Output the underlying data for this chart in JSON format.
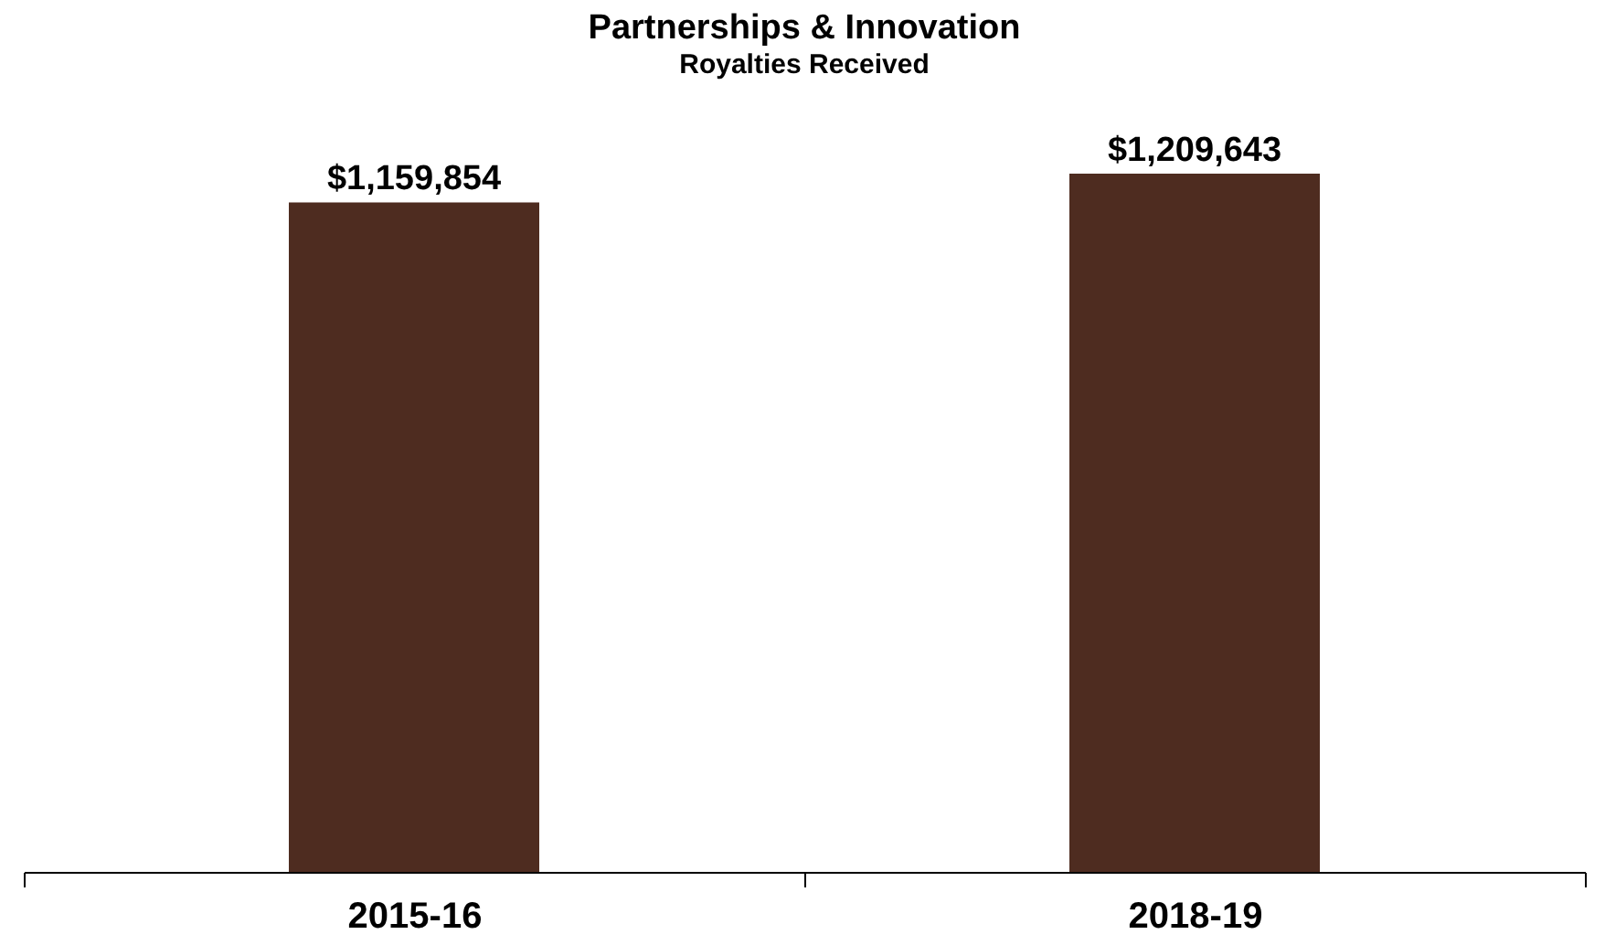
{
  "chart_data": {
    "type": "bar",
    "title": "Partnerships & Innovation",
    "subtitle": "Royalties Received",
    "categories": [
      "2015-16",
      "2018-19"
    ],
    "values": [
      1159854,
      1209643
    ],
    "value_labels": [
      "$1,159,854",
      "$1,209,643"
    ],
    "color": "#4e2c20",
    "grid": false
  }
}
